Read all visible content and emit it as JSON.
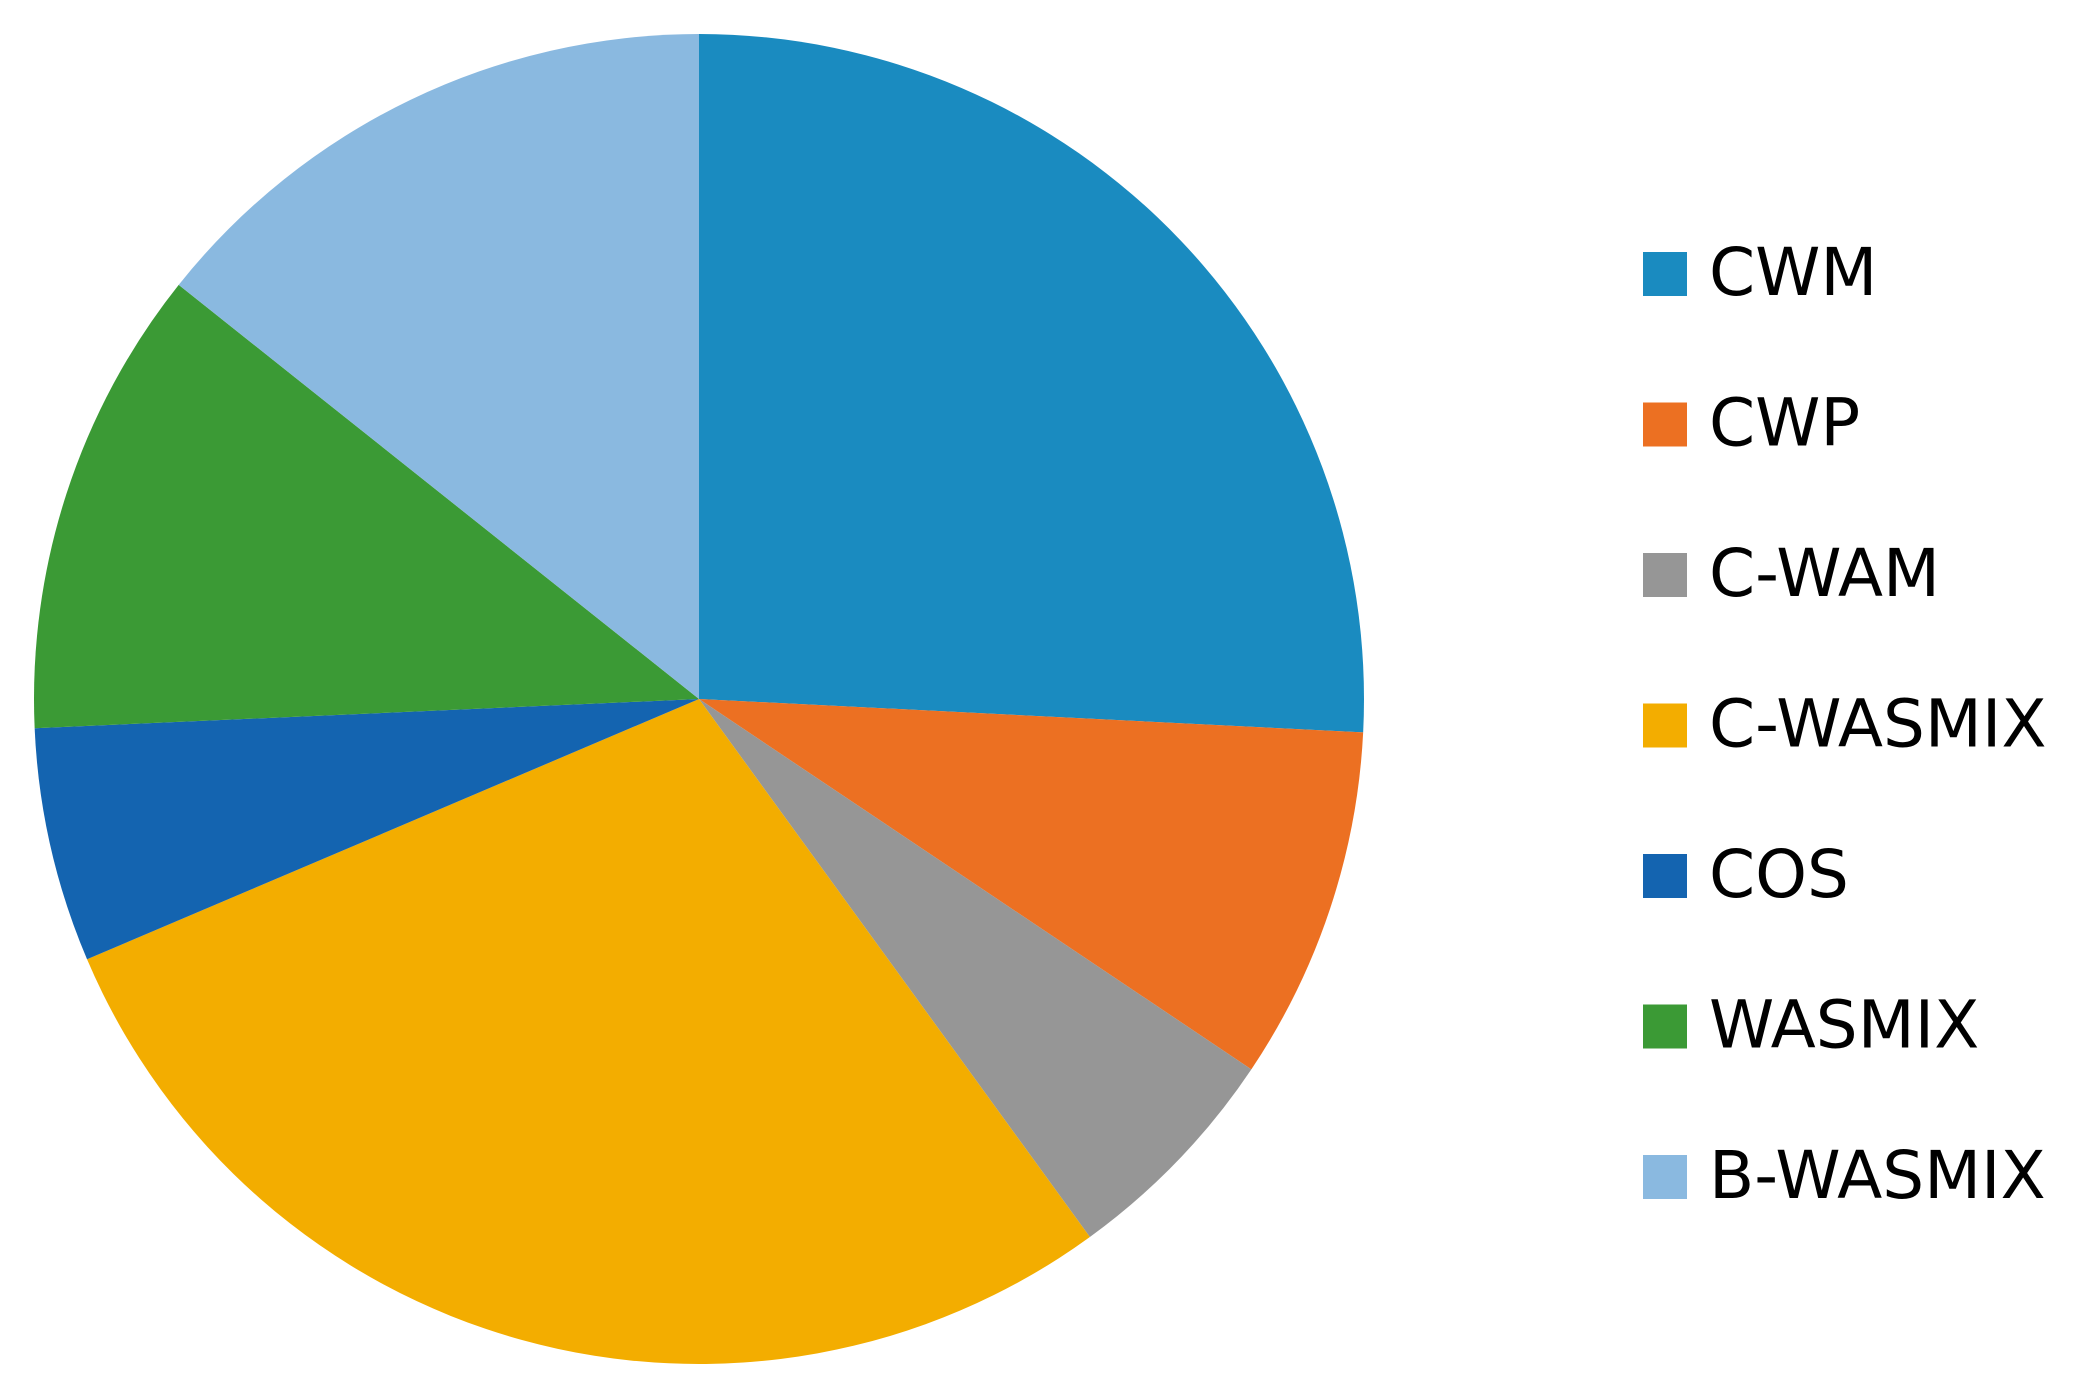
{
  "chart_data": {
    "type": "pie",
    "categories": [
      "CWM",
      "CWP",
      "C-WAM",
      "C-WASMIX",
      "COS",
      "WASMIX",
      "B-WASMIX"
    ],
    "values": [
      25.8,
      8.6,
      5.6,
      28.6,
      5.7,
      11.4,
      14.3
    ],
    "colors": [
      "#1a8bc0",
      "#ec7022",
      "#969696",
      "#f3ad00",
      "#1464b0",
      "#3b9a35",
      "#8ab9e0"
    ],
    "legend": "right"
  }
}
